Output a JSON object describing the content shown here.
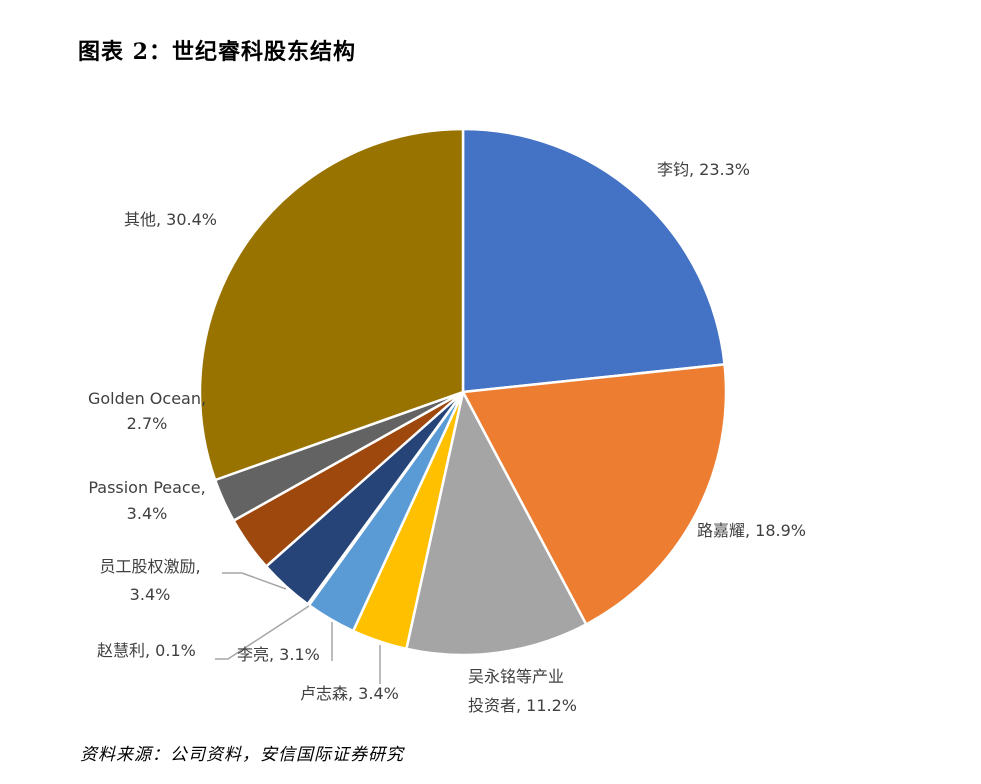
{
  "title": "图表 2：世纪睿科股东结构",
  "source": "资料来源：公司资料，安信国际证券研究",
  "chart_data": {
    "type": "pie",
    "title": "图表 2：世纪睿科股东结构",
    "start": "12 o'clock",
    "direction": "clockwise",
    "slices": [
      {
        "name": "李钧",
        "value": 23.3,
        "label": "李钧, 23.3%",
        "color": "#4472C4"
      },
      {
        "name": "路嘉耀",
        "value": 18.9,
        "label": "路嘉耀, 18.9%",
        "color": "#ED7D31"
      },
      {
        "name": "吴永铭等产业投资者",
        "value": 11.2,
        "label_line1": "吴永铭等产业",
        "label_line2": "投资者, 11.2%",
        "color": "#A5A5A5"
      },
      {
        "name": "卢志森",
        "value": 3.4,
        "label": "卢志森, 3.4%",
        "color": "#FFC000"
      },
      {
        "name": "李亮",
        "value": 3.1,
        "label": "李亮, 3.1%",
        "color": "#5B9BD5"
      },
      {
        "name": "赵慧利",
        "value": 0.1,
        "label": "赵慧利, 0.1%",
        "color": "#70AD47"
      },
      {
        "name": "员工股权激励",
        "value": 3.4,
        "label_line1": "员工股权激励,",
        "label_line2": "3.4%",
        "color": "#264478"
      },
      {
        "name": "Passion Peace",
        "value": 3.4,
        "label_line1": "Passion Peace,",
        "label_line2": "3.4%",
        "color": "#9E480E"
      },
      {
        "name": "Golden Ocean",
        "value": 2.7,
        "label_line1": "Golden Ocean,",
        "label_line2": "2.7%",
        "color": "#636363"
      },
      {
        "name": "其他",
        "value": 30.4,
        "label": "其他, 30.4%",
        "color": "#997300"
      }
    ]
  }
}
